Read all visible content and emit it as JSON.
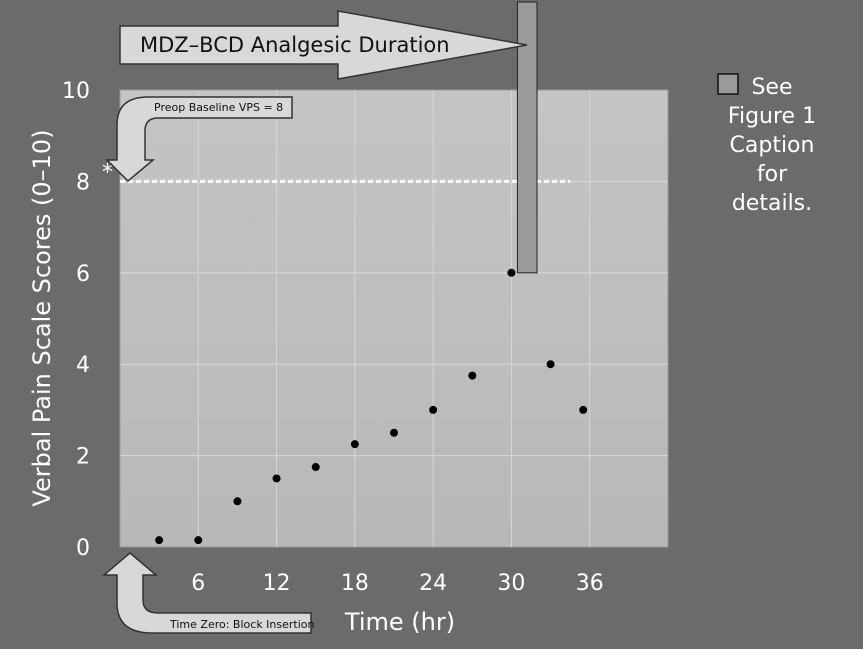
{
  "chart_data": {
    "type": "scatter",
    "title": "",
    "xlabel": "Time (hr)",
    "ylabel": "Verbal  Pain Scale Scores (0–10)",
    "xlim": [
      0,
      42
    ],
    "ylim": [
      0,
      10
    ],
    "x_ticks": [
      6,
      12,
      18,
      24,
      30,
      36
    ],
    "y_ticks": [
      0,
      2,
      4,
      6,
      8,
      10
    ],
    "grid": true,
    "series": [
      {
        "x": [
          3,
          6,
          9,
          12,
          15,
          18,
          21,
          24,
          27,
          30,
          33,
          35.5
        ],
        "y": [
          0.15,
          0.15,
          1.0,
          1.5,
          1.75,
          2.25,
          2.5,
          3.0,
          3.75,
          6.0,
          4.0,
          3.0
        ]
      }
    ],
    "baseline": {
      "value": 8,
      "label": "Preop Baseline VPS = 8",
      "marker": "*"
    },
    "duration_bar": {
      "x_start": 30,
      "x_end": 31.5,
      "y_low": 6
    },
    "annotations": {
      "duration_arrow": "MDZ–BCD Analgesic Duration",
      "time_zero": "Time Zero: Block Insertion"
    },
    "legend": {
      "position": "right",
      "lines": [
        "See",
        "Figure 1",
        "Caption",
        "for",
        "details."
      ]
    },
    "colors": {
      "background": "#6b6b6b",
      "plot_area": "#c3c3c3",
      "grid": "#d6d6d6",
      "points": "#000000",
      "bar": "#9a9a9a",
      "arrow_fill": "#d8d8d8",
      "baseline": "#ffffff"
    }
  }
}
